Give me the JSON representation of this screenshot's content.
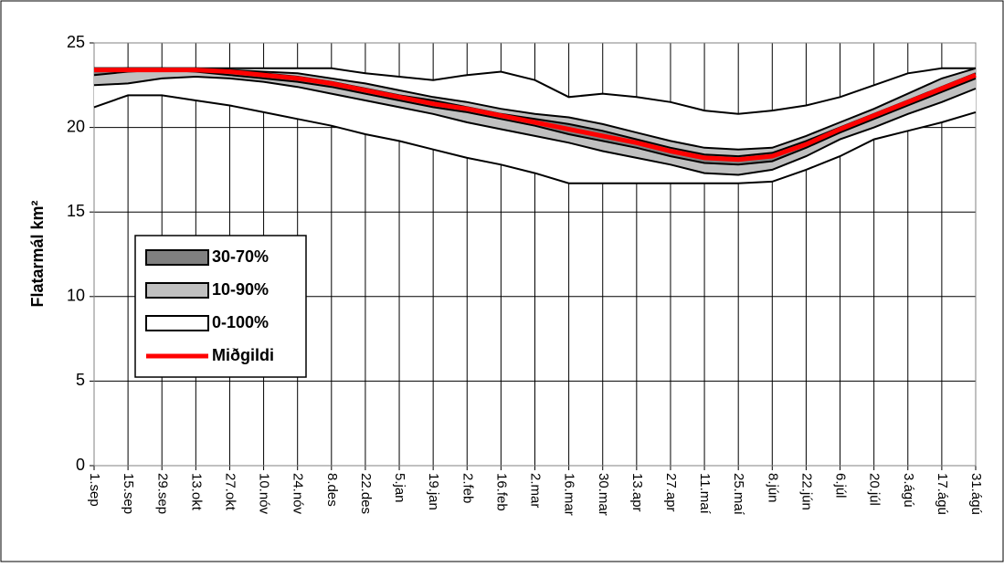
{
  "chart_data": {
    "type": "band",
    "y_label": "Flatarmál km²",
    "categories": [
      "1.sep",
      "15.sep",
      "29.sep",
      "13.okt",
      "27.okt",
      "10.nóv",
      "24.nóv",
      "8.des",
      "22.des",
      "5.jan",
      "19.jan",
      "2.feb",
      "16.feb",
      "2.mar",
      "16.mar",
      "30.mar",
      "13.apr",
      "27.apr",
      "11.maí",
      "25.maí",
      "8.jún",
      "22.jún",
      "6.júl",
      "20.júl",
      "3.ágú",
      "17.ágú",
      "31.ágú"
    ],
    "ylim": [
      0,
      25
    ],
    "yticks": [
      0,
      5,
      10,
      15,
      20,
      25
    ],
    "grid": true,
    "series": [
      {
        "name": "30-70%",
        "color": "#808080",
        "lower": [
          23.1,
          23.3,
          23.4,
          23.3,
          23.1,
          22.9,
          22.7,
          22.4,
          22.0,
          21.6,
          21.2,
          20.9,
          20.5,
          20.1,
          19.6,
          19.2,
          18.8,
          18.3,
          17.9,
          17.8,
          18.0,
          18.8,
          19.7,
          20.5,
          21.3,
          22.1,
          22.9
        ],
        "upper": [
          23.5,
          23.5,
          23.5,
          23.4,
          23.3,
          23.2,
          23.0,
          22.7,
          22.3,
          21.9,
          21.6,
          21.2,
          20.8,
          20.5,
          20.2,
          19.8,
          19.3,
          18.8,
          18.4,
          18.3,
          18.5,
          19.2,
          20.0,
          20.8,
          21.6,
          22.4,
          23.2
        ]
      },
      {
        "name": "10-90%",
        "color": "#c0c0c0",
        "lower": [
          22.5,
          22.6,
          22.9,
          23.0,
          22.9,
          22.7,
          22.4,
          22.0,
          21.6,
          21.2,
          20.8,
          20.3,
          19.9,
          19.5,
          19.1,
          18.6,
          18.2,
          17.8,
          17.3,
          17.2,
          17.5,
          18.3,
          19.3,
          20.0,
          20.8,
          21.5,
          22.3
        ],
        "upper": [
          23.5,
          23.5,
          23.5,
          23.5,
          23.4,
          23.3,
          23.2,
          22.9,
          22.6,
          22.2,
          21.8,
          21.5,
          21.1,
          20.8,
          20.6,
          20.2,
          19.7,
          19.2,
          18.8,
          18.7,
          18.8,
          19.5,
          20.3,
          21.1,
          22.0,
          22.9,
          23.5
        ]
      },
      {
        "name": "0-100%",
        "color": "#ffffff",
        "lower": [
          21.2,
          21.9,
          21.9,
          21.6,
          21.3,
          20.9,
          20.5,
          20.1,
          19.6,
          19.2,
          18.7,
          18.2,
          17.8,
          17.3,
          16.7,
          16.7,
          16.7,
          16.7,
          16.7,
          16.7,
          16.8,
          17.5,
          18.3,
          19.3,
          19.8,
          20.3,
          20.9
        ],
        "upper": [
          23.4,
          23.5,
          23.5,
          23.5,
          23.5,
          23.5,
          23.5,
          23.5,
          23.2,
          23.0,
          22.8,
          23.1,
          23.3,
          22.8,
          21.8,
          22.0,
          21.8,
          21.5,
          21.0,
          20.8,
          21.0,
          21.3,
          21.8,
          22.5,
          23.2,
          23.5,
          23.5
        ]
      },
      {
        "name": "Miðgildi",
        "color": "#ff0000",
        "values": [
          23.4,
          23.4,
          23.4,
          23.4,
          23.3,
          23.1,
          22.9,
          22.6,
          22.2,
          21.8,
          21.4,
          21.1,
          20.7,
          20.3,
          19.9,
          19.5,
          19.1,
          18.6,
          18.2,
          18.1,
          18.3,
          19.0,
          19.9,
          20.7,
          21.5,
          22.3,
          23.1
        ]
      }
    ]
  }
}
